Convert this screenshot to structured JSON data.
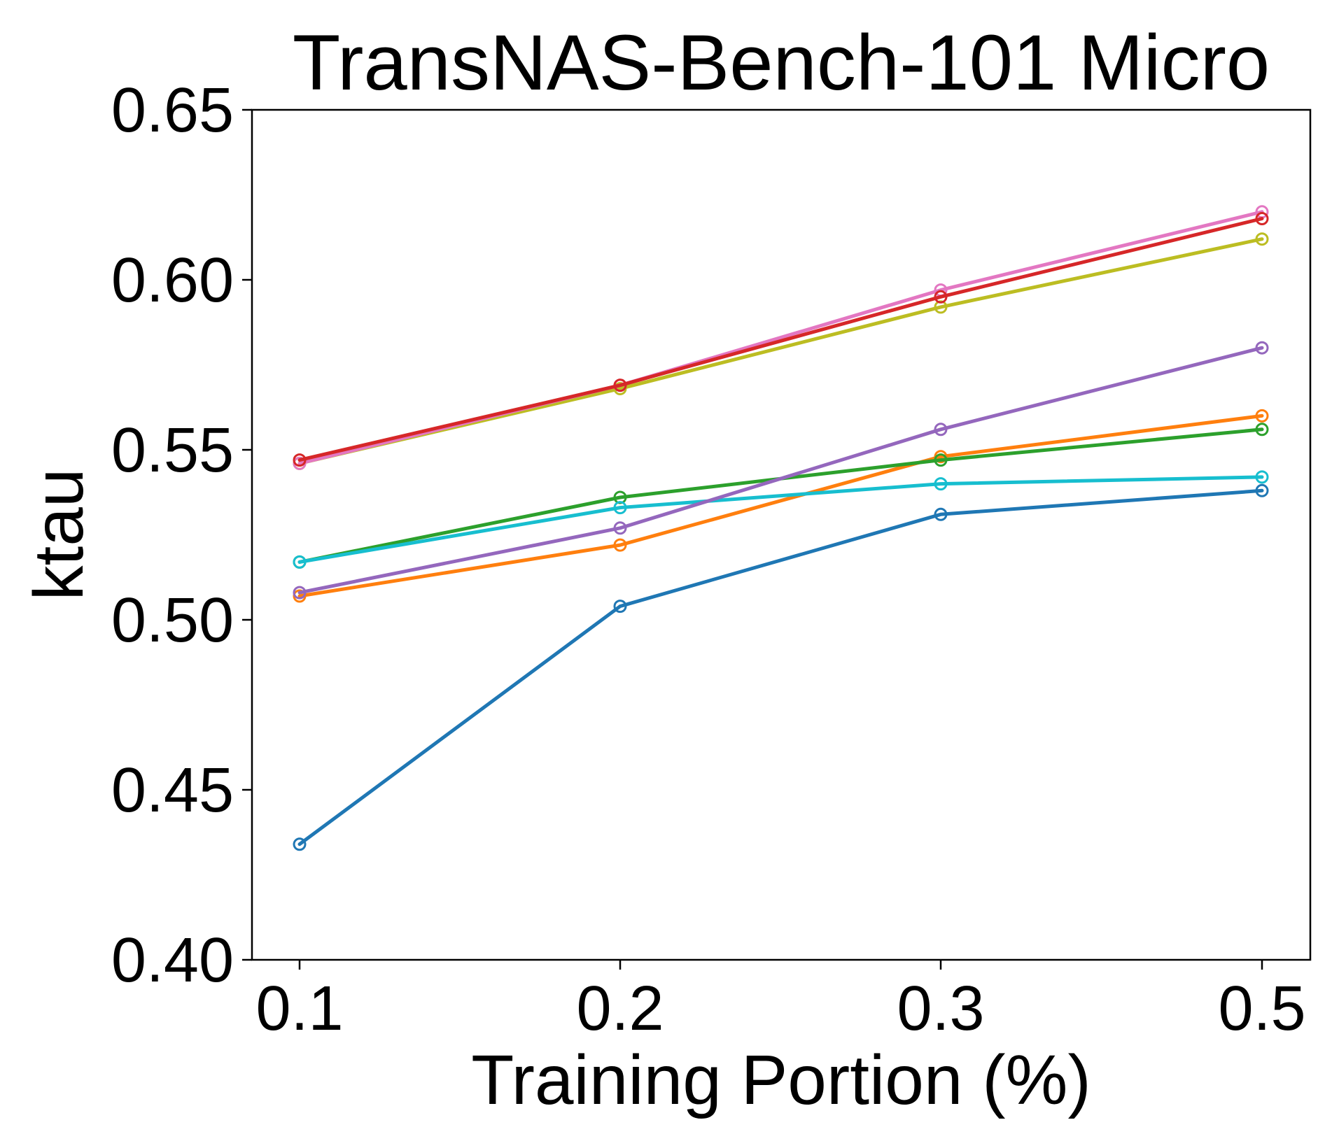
{
  "chart_data": {
    "type": "line",
    "title": "TransNAS-Bench-101 Micro",
    "xlabel": "Training Portion (%)",
    "ylabel": "ktau",
    "categories": [
      "0.1",
      "0.2",
      "0.3",
      "0.5"
    ],
    "yticks": [
      "0.40",
      "0.45",
      "0.50",
      "0.55",
      "0.60",
      "0.65"
    ],
    "ylim": [
      0.4,
      0.65
    ],
    "grid": false,
    "legend": "none",
    "series": [
      {
        "name": "blue",
        "color": "#1f77b4",
        "values": [
          0.434,
          0.504,
          0.531,
          0.538
        ]
      },
      {
        "name": "orange",
        "color": "#ff7f0e",
        "values": [
          0.507,
          0.522,
          0.548,
          0.56
        ]
      },
      {
        "name": "green",
        "color": "#2ca02c",
        "values": [
          0.517,
          0.536,
          0.547,
          0.556
        ]
      },
      {
        "name": "cyan",
        "color": "#17becf",
        "values": [
          0.517,
          0.533,
          0.54,
          0.542
        ]
      },
      {
        "name": "purple",
        "color": "#9467bd",
        "values": [
          0.508,
          0.527,
          0.556,
          0.58
        ]
      },
      {
        "name": "olive",
        "color": "#bcbd22",
        "values": [
          0.546,
          0.568,
          0.592,
          0.612
        ]
      },
      {
        "name": "pink",
        "color": "#e377c2",
        "values": [
          0.546,
          0.569,
          0.597,
          0.62
        ]
      },
      {
        "name": "red",
        "color": "#d62728",
        "values": [
          0.547,
          0.569,
          0.595,
          0.618
        ]
      }
    ]
  }
}
